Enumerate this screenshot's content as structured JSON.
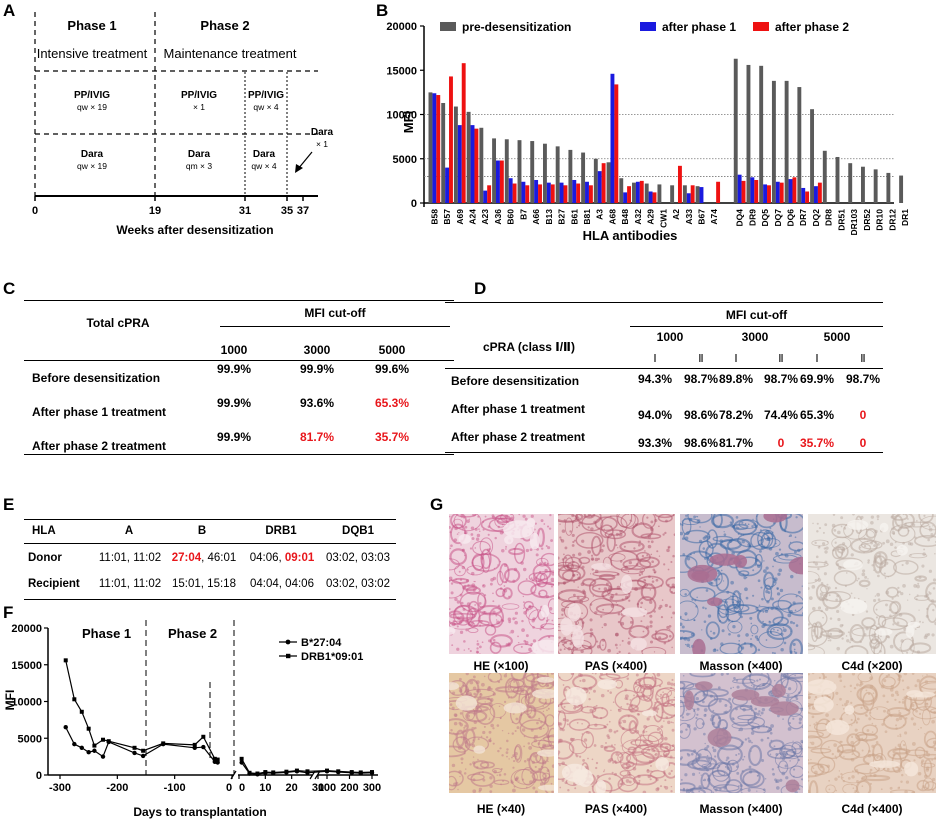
{
  "panelA": {
    "letter": "A",
    "phase1_title": "Phase 1",
    "phase1_sub": "Intensive treatment",
    "phase2_title": "Phase 2",
    "phase2_sub": "Maintenance treatment",
    "pp_label": "PP/IVIG",
    "pp1_freq": "qw × 19",
    "pp2_freq": "× 1",
    "pp3_freq": "qw × 4",
    "dara_label": "Dara",
    "dara1_freq": "qw × 19",
    "dara2_freq": "qm × 3",
    "dara3_freq": "qw × 4",
    "dara_extra_label": "Dara",
    "dara_extra_freq": "× 1",
    "ticks": [
      "0",
      "19",
      "31",
      "35",
      "37"
    ],
    "xlabel": "Weeks after desensitization"
  },
  "panelB": {
    "letter": "B",
    "chart_data": {
      "type": "bar",
      "ylabel": "MFI",
      "xlabel": "HLA antibodies",
      "ylim": [
        0,
        20000
      ],
      "yticks": [
        "0",
        "5000",
        "10000",
        "15000",
        "20000"
      ],
      "reference_lines": [
        10000,
        5000,
        3000
      ],
      "group1": [
        "B58",
        "B57",
        "A69",
        "A24",
        "A23",
        "A36",
        "B60",
        "B7",
        "A66",
        "B13",
        "B27",
        "B61",
        "B81",
        "A3",
        "A68",
        "B48",
        "A32",
        "A29",
        "CW1",
        "A2",
        "A33",
        "B67",
        "A74"
      ],
      "group2": [
        "DQ4",
        "DR9",
        "DQ5",
        "DQ7",
        "DQ6",
        "DR7",
        "DQ2",
        "DR8",
        "DR51",
        "DR103",
        "DR52",
        "DR10",
        "DR12",
        "DR1"
      ],
      "series": [
        {
          "name": "pre-desensitization",
          "color": "#5a5a5a",
          "values": [
            12500,
            11300,
            10900,
            10300,
            8500,
            7300,
            7200,
            7100,
            7000,
            6700,
            6400,
            6000,
            5700,
            5000,
            4600,
            2800,
            2300,
            2200,
            2100,
            2000,
            2000,
            1900,
            0,
            16300,
            15600,
            15500,
            13800,
            13800,
            13100,
            10600,
            5900,
            5200,
            4500,
            4100,
            3800,
            3400,
            3100
          ]
        },
        {
          "name": "after phase 1",
          "color": "#1a1adf",
          "values": [
            12400,
            4000,
            8800,
            8800,
            1400,
            4800,
            2800,
            2400,
            2600,
            2300,
            2300,
            2600,
            2400,
            3600,
            14600,
            1200,
            2400,
            1300,
            0,
            0,
            1100,
            1800,
            0,
            3200,
            2900,
            2100,
            2400,
            2700,
            1700,
            1900,
            0,
            0,
            0,
            0,
            0,
            0,
            0
          ]
        },
        {
          "name": "after phase 2",
          "color": "#ee1111",
          "values": [
            12200,
            14300,
            15800,
            8400,
            2000,
            4800,
            2200,
            2000,
            2100,
            2100,
            2000,
            2200,
            2000,
            4500,
            13400,
            1900,
            2500,
            1200,
            0,
            4200,
            2000,
            0,
            2400,
            2500,
            2600,
            2000,
            2300,
            2900,
            1300,
            2300,
            0,
            0,
            0,
            0,
            0,
            0,
            0
          ]
        }
      ]
    }
  },
  "panelC": {
    "letter": "C",
    "corner": "Total cPRA",
    "group_header": "MFI cut-off",
    "cols": [
      "1000",
      "3000",
      "5000"
    ],
    "rows": [
      {
        "label": "Before desensitization",
        "values": [
          "99.9%",
          "99.9%",
          "99.6%"
        ]
      },
      {
        "label": "After phase 1 treatment",
        "values": [
          "99.9%",
          "93.6%",
          "65.3%"
        ]
      },
      {
        "label": "After phase 2 treatment",
        "values": [
          "99.9%",
          "81.7%",
          "35.7%"
        ]
      }
    ],
    "red_color": "#e8161b"
  },
  "panelD": {
    "letter": "D",
    "corner": "cPRA (class Ⅰ/Ⅱ)",
    "group_header": "MFI cut-off",
    "cols": [
      "1000",
      "3000",
      "5000"
    ],
    "sub": [
      "Ⅰ",
      "Ⅱ",
      "Ⅰ",
      "Ⅱ",
      "Ⅰ",
      "Ⅱ"
    ],
    "rows": [
      {
        "label": "Before desensitization",
        "values": [
          "94.3%",
          "98.7%",
          "89.8%",
          "98.7%",
          "69.9%",
          "98.7%"
        ]
      },
      {
        "label": "After phase 1 treatment",
        "values": [
          "94.0%",
          "98.6%",
          "78.2%",
          "74.4%",
          "65.3%",
          "0"
        ]
      },
      {
        "label": "After phase 2 treatment",
        "values": [
          "93.3%",
          "98.6%",
          "81.7%",
          "0",
          "35.7%",
          "0"
        ]
      }
    ]
  },
  "panelE": {
    "letter": "E",
    "headers": [
      "HLA",
      "A",
      "B",
      "DRB1",
      "DQB1"
    ],
    "donor_label": "Donor",
    "donor_A": "11:01, 11:02",
    "donor_B1": "27:04",
    "donor_B_sep": ", 46:01",
    "donor_DRB1_1": "04:06, ",
    "donor_DRB1_2": "09:01",
    "donor_DQB1": "03:02, 03:03",
    "recipient_label": "Recipient",
    "recipient_A": "11:01, 11:02",
    "recipient_B": "15:01, 15:18",
    "recipient_DRB1": "04:04, 04:06",
    "recipient_DQB1": "03:02, 03:02"
  },
  "panelF": {
    "letter": "F",
    "chart_data": {
      "type": "line",
      "ylabel": "MFI",
      "xlabel": "Days to transplantation",
      "ylim": [
        0,
        20000
      ],
      "yticks": [
        "0",
        "5000",
        "10000",
        "15000",
        "20000"
      ],
      "xticks_pre": [
        "-300",
        "-200",
        "-100",
        "0"
      ],
      "xticks_post": [
        "0",
        "10",
        "20",
        "30",
        "100",
        "200",
        "300"
      ],
      "phase1_label": "Phase 1",
      "phase2_label": "Phase 2",
      "series": [
        {
          "name": "B*27:04",
          "pre_x": [
            -290,
            -275,
            -262,
            -250,
            -240,
            -225,
            -215,
            -170,
            -155,
            -120,
            -65,
            -50,
            -30,
            -25
          ],
          "pre_y": [
            6500,
            4200,
            3700,
            3100,
            3300,
            2500,
            4500,
            3000,
            2600,
            4200,
            3700,
            3800,
            1800,
            1700
          ],
          "post_x": [
            1,
            4,
            7,
            10,
            13,
            18,
            22,
            26,
            100,
            150,
            210,
            250,
            300
          ],
          "post_y": [
            1700,
            200,
            100,
            300,
            250,
            350,
            500,
            300,
            500,
            400,
            300,
            250,
            300
          ]
        },
        {
          "name": "DRB1*09:01",
          "pre_x": [
            -290,
            -275,
            -262,
            -250,
            -240,
            -225,
            -215,
            -170,
            -155,
            -120,
            -65,
            -50,
            -30,
            -25
          ],
          "pre_y": [
            15600,
            10300,
            8600,
            6300,
            4000,
            4800,
            4600,
            3700,
            3300,
            4300,
            4100,
            5200,
            2200,
            2100
          ],
          "post_x": [
            1,
            4,
            7,
            10,
            13,
            18,
            22,
            26,
            100,
            150,
            210,
            250,
            300
          ],
          "post_y": [
            2200,
            300,
            200,
            400,
            350,
            450,
            600,
            500,
            600,
            500,
            400,
            350,
            400
          ]
        }
      ]
    }
  },
  "panelG": {
    "letter": "G",
    "captions_top": [
      "HE (×100)",
      "PAS (×400)",
      "Masson (×400)",
      "C4d (×200)"
    ],
    "captions_bottom": [
      "HE (×40)",
      "PAS (×400)",
      "Masson (×400)",
      "C4d (×400)"
    ]
  }
}
